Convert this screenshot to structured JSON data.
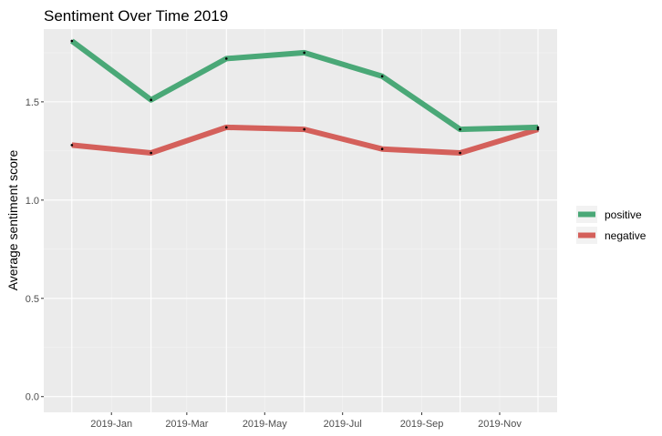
{
  "chart_data": {
    "type": "line",
    "title": "Sentiment Over Time 2019",
    "xlabel": "",
    "ylabel": "Average sentiment score",
    "x": [
      "2018-12",
      "2019-02",
      "2019-04",
      "2019-06",
      "2019-08",
      "2019-10",
      "2019-12"
    ],
    "x_ticks": [
      "2019-Jan",
      "2019-Mar",
      "2019-May",
      "2019-Jul",
      "2019-Sep",
      "2019-Nov"
    ],
    "x_tick_dates": [
      "2019-01",
      "2019-03",
      "2019-05",
      "2019-07",
      "2019-09",
      "2019-11"
    ],
    "xlim": [
      "2018-11-09",
      "2019-12-16"
    ],
    "ylim": [
      -0.08,
      1.87
    ],
    "y_ticks": [
      0.0,
      0.5,
      1.0,
      1.5
    ],
    "y_tick_labels": [
      "0.0",
      "0.5",
      "1.0",
      "1.5"
    ],
    "grid": true,
    "legend_position": "right",
    "series": [
      {
        "name": "positive",
        "color": "#4aa877",
        "values": [
          1.81,
          1.51,
          1.72,
          1.75,
          1.63,
          1.36,
          1.37
        ]
      },
      {
        "name": "negative",
        "color": "#d4605b",
        "values": [
          1.28,
          1.24,
          1.37,
          1.36,
          1.26,
          1.24,
          1.36
        ]
      }
    ]
  }
}
